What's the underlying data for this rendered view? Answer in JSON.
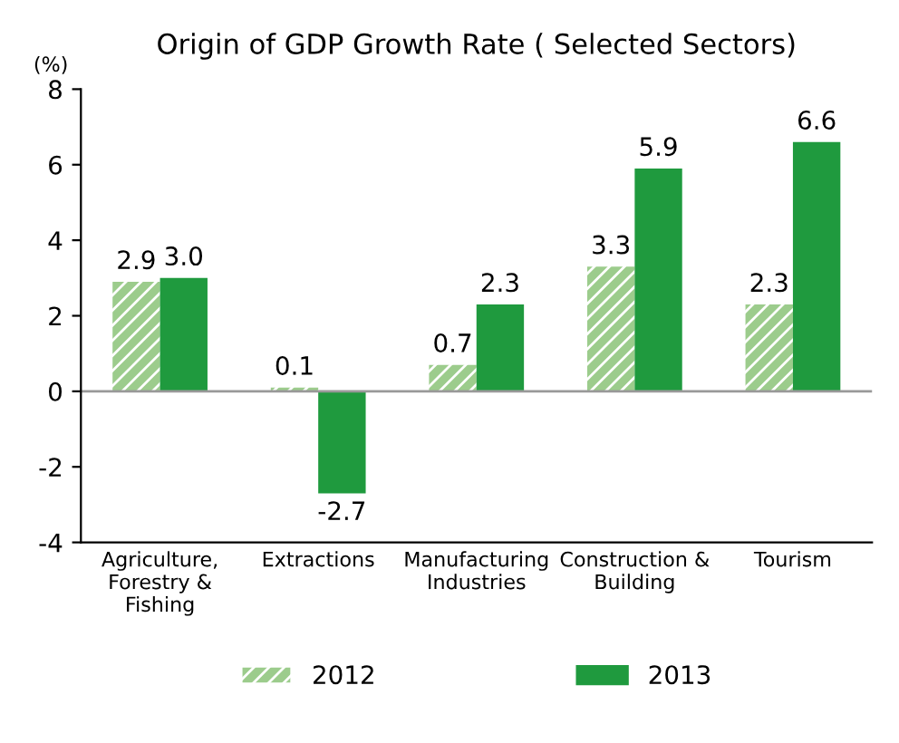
{
  "chart_data": {
    "type": "bar",
    "title": "Origin of GDP Growth Rate ( Selected Sectors)",
    "ylabel": "(%)",
    "categories": [
      "Agriculture,\nForestry &\nFishing",
      "Extractions",
      "Manufacturing\nIndustries",
      "Construction &\nBuilding",
      "Tourism"
    ],
    "series": [
      {
        "name": "2012",
        "color": "#9ccc8c",
        "values": [
          2.9,
          0.1,
          0.7,
          3.3,
          2.3
        ],
        "value_labels": [
          "2.9",
          "0.1",
          "0.7",
          "3.3",
          "2.3"
        ]
      },
      {
        "name": "2013",
        "color": "#1f9a3e",
        "values": [
          3.0,
          -2.7,
          2.3,
          5.9,
          6.6
        ],
        "value_labels": [
          "3.0",
          "-2.7",
          "2.3",
          "5.9",
          "6.6"
        ]
      }
    ],
    "ylim": [
      -4,
      8
    ],
    "yticks": [
      -4,
      -2,
      0,
      2,
      4,
      6,
      8
    ],
    "ref_lines": [
      {
        "axis": "y",
        "value": 0,
        "color": "#999999"
      }
    ],
    "legend": "bottom"
  }
}
